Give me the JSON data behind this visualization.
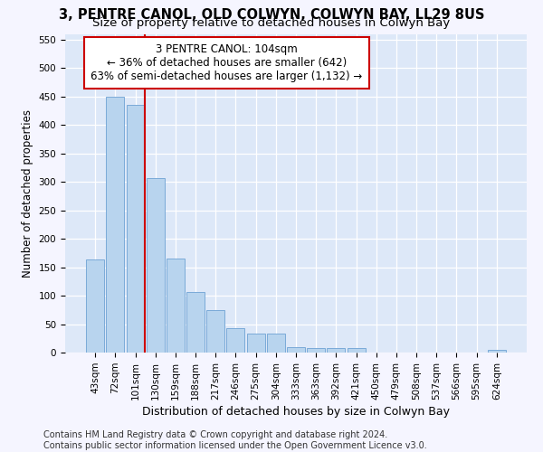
{
  "title": "3, PENTRE CANOL, OLD COLWYN, COLWYN BAY, LL29 8US",
  "subtitle": "Size of property relative to detached houses in Colwyn Bay",
  "xlabel": "Distribution of detached houses by size in Colwyn Bay",
  "ylabel": "Number of detached properties",
  "categories": [
    "43sqm",
    "72sqm",
    "101sqm",
    "130sqm",
    "159sqm",
    "188sqm",
    "217sqm",
    "246sqm",
    "275sqm",
    "304sqm",
    "333sqm",
    "363sqm",
    "392sqm",
    "421sqm",
    "450sqm",
    "479sqm",
    "508sqm",
    "537sqm",
    "566sqm",
    "595sqm",
    "624sqm"
  ],
  "values": [
    163,
    450,
    435,
    307,
    165,
    106,
    74,
    43,
    33,
    33,
    10,
    8,
    8,
    8,
    0,
    0,
    0,
    0,
    0,
    0,
    4
  ],
  "bar_color": "#b8d4ee",
  "bar_edge_color": "#7aaad8",
  "marker_idx": 2,
  "annotation_line1": "3 PENTRE CANOL: 104sqm",
  "annotation_line2": "← 36% of detached houses are smaller (642)",
  "annotation_line3": "63% of semi-detached houses are larger (1,132) →",
  "marker_color": "#cc0000",
  "ylim": [
    0,
    560
  ],
  "yticks": [
    0,
    50,
    100,
    150,
    200,
    250,
    300,
    350,
    400,
    450,
    500,
    550
  ],
  "footer_line1": "Contains HM Land Registry data © Crown copyright and database right 2024.",
  "footer_line2": "Contains public sector information licensed under the Open Government Licence v3.0.",
  "bg_color": "#dde8f8",
  "grid_color": "#ffffff",
  "fig_bg_color": "#f5f5ff",
  "title_fontsize": 10.5,
  "subtitle_fontsize": 9.5,
  "ylabel_fontsize": 8.5,
  "xlabel_fontsize": 9,
  "tick_fontsize": 7.5,
  "annot_fontsize": 8.5,
  "footer_fontsize": 7
}
